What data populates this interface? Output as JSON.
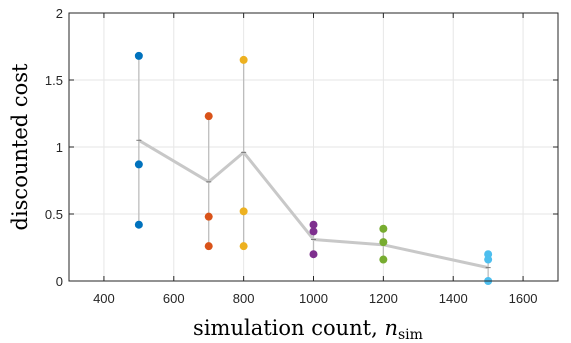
{
  "chart_data": {
    "type": "scatter",
    "xlabel": {
      "main": "simulation count, ",
      "var": "n",
      "sub": "sim"
    },
    "ylabel": "discounted cost",
    "xlim": [
      300,
      1700
    ],
    "ylim": [
      0,
      2
    ],
    "x_ticks": [
      400,
      600,
      800,
      1000,
      1200,
      1400,
      1600
    ],
    "y_ticks": [
      0,
      0.5,
      1,
      1.5,
      2
    ],
    "y_tick_labels": [
      "0",
      "0.5",
      "1",
      "1.5",
      "2"
    ],
    "grid": true,
    "groups": [
      {
        "x": 500,
        "color": "#0072BD",
        "values": [
          1.68,
          0.87,
          0.42
        ],
        "mean": 1.05
      },
      {
        "x": 700,
        "color": "#D95319",
        "values": [
          1.23,
          0.48,
          0.26
        ],
        "mean": 0.74
      },
      {
        "x": 800,
        "color": "#EDB120",
        "values": [
          1.65,
          0.52,
          0.26
        ],
        "mean": 0.96
      },
      {
        "x": 1000,
        "color": "#7E2F8E",
        "values": [
          0.42,
          0.37,
          0.2
        ],
        "mean": 0.31
      },
      {
        "x": 1200,
        "color": "#77AC30",
        "values": [
          0.39,
          0.29,
          0.16
        ],
        "mean": 0.27
      },
      {
        "x": 1500,
        "color": "#4DBEEE",
        "values": [
          0.2,
          0.16,
          0.0
        ],
        "mean": 0.1
      }
    ],
    "mean_line_color": "#c8c8c8",
    "range_line_color": "#bdbdbd"
  }
}
